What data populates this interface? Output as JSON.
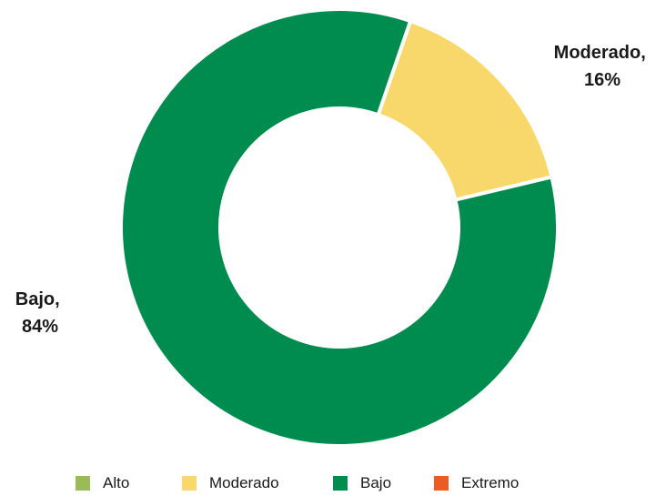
{
  "chart_data": {
    "type": "pie",
    "variant": "donut",
    "slices": [
      {
        "name": "Moderado",
        "value": 16,
        "color": "#f9d86b",
        "label_line1": "Moderado,",
        "label_line2": "16%"
      },
      {
        "name": "Bajo",
        "value": 84,
        "color": "#008c4e",
        "label_line1": "Bajo,",
        "label_line2": "84%"
      }
    ],
    "legend": {
      "position": "bottom",
      "entries": [
        {
          "label": "Alto",
          "color": "#9bbb59"
        },
        {
          "label": "Moderado",
          "color": "#f9d86b"
        },
        {
          "label": "Bajo",
          "color": "#008c4e"
        },
        {
          "label": "Extremo",
          "color": "#ee5a24"
        }
      ]
    }
  }
}
